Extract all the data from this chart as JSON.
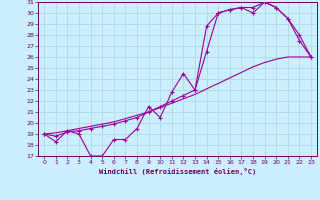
{
  "xlabel": "Windchill (Refroidissement éolien,°C)",
  "bg_color": "#cceeff",
  "grid_color": "#aadddd",
  "line_color": "#990099",
  "xlim": [
    -0.5,
    23.5
  ],
  "ylim": [
    17,
    31
  ],
  "xticks": [
    0,
    1,
    2,
    3,
    4,
    5,
    6,
    7,
    8,
    9,
    10,
    11,
    12,
    13,
    14,
    15,
    16,
    17,
    18,
    19,
    20,
    21,
    22,
    23
  ],
  "yticks": [
    17,
    18,
    19,
    20,
    21,
    22,
    23,
    24,
    25,
    26,
    27,
    28,
    29,
    30,
    31
  ],
  "line1_x": [
    0,
    1,
    2,
    3,
    4,
    5,
    6,
    7,
    8,
    9,
    10,
    11,
    12,
    13,
    14,
    15,
    16,
    17,
    18,
    19,
    20,
    21,
    22,
    23
  ],
  "line1_y": [
    19,
    18.3,
    19.3,
    19,
    17,
    17,
    18.5,
    18.5,
    19.5,
    21.5,
    20.5,
    22.8,
    24.5,
    23,
    26.5,
    30,
    30.3,
    30.5,
    30.5,
    31,
    30.5,
    29.5,
    27.5,
    26
  ],
  "line2_x": [
    0,
    1,
    2,
    3,
    4,
    5,
    6,
    7,
    8,
    9,
    10,
    11,
    12,
    13,
    14,
    15,
    16,
    17,
    18,
    19,
    20,
    21,
    22,
    23
  ],
  "line2_y": [
    19,
    19.1,
    19.3,
    19.5,
    19.7,
    19.9,
    20.1,
    20.4,
    20.7,
    21.0,
    21.4,
    21.8,
    22.2,
    22.6,
    23.1,
    23.6,
    24.1,
    24.6,
    25.1,
    25.5,
    25.8,
    26.0,
    26.0,
    26.0
  ],
  "line3_x": [
    0,
    1,
    2,
    3,
    4,
    5,
    6,
    7,
    8,
    9,
    10,
    11,
    12,
    13,
    14,
    15,
    16,
    17,
    18,
    19,
    20,
    21,
    22,
    23
  ],
  "line3_y": [
    19,
    18.8,
    19.2,
    19.3,
    19.5,
    19.7,
    19.9,
    20.2,
    20.5,
    21.0,
    21.5,
    22.0,
    22.5,
    23.0,
    28.8,
    30.0,
    30.3,
    30.5,
    30.0,
    31.0,
    30.5,
    29.5,
    28.0,
    26.0
  ]
}
